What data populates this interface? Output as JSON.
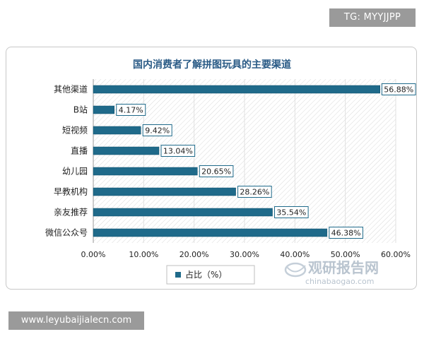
{
  "badges": {
    "top_right": "TG: MYYJJPP",
    "bottom_left": "www.leyubaijialecn.com"
  },
  "watermark": {
    "logo_icon": "globe-swirl-icon",
    "brand": "观研报告网",
    "url": "chinabaogao.com"
  },
  "colors": {
    "bar": "#1f6a8a",
    "bar_edge": "#0f4e6b",
    "title": "#2a5b86",
    "label_border": "#1f6a8a"
  },
  "chart_data": {
    "type": "bar",
    "orientation": "horizontal",
    "title": "国内消费者了解拼图玩具的主要渠道",
    "categories": [
      "其他渠道",
      "B站",
      "短视频",
      "直播",
      "幼儿园",
      "早教机构",
      "亲友推荐",
      "微信公众号"
    ],
    "series": [
      {
        "name": "占比（%）",
        "values": [
          56.88,
          4.17,
          9.42,
          13.04,
          20.65,
          28.26,
          35.54,
          46.38
        ],
        "labels": [
          "56.88%",
          "4.17%",
          "9.42%",
          "13.04%",
          "20.65%",
          "28.26%",
          "35.54%",
          "46.38%"
        ]
      }
    ],
    "xlim": [
      0,
      60
    ],
    "xticks": [
      0,
      10,
      20,
      30,
      40,
      50,
      60
    ],
    "xtick_labels": [
      "0.00%",
      "10.00%",
      "20.00%",
      "30.00%",
      "40.00%",
      "50.00%",
      "60.00%"
    ],
    "grid": true,
    "legend_position": "bottom"
  }
}
